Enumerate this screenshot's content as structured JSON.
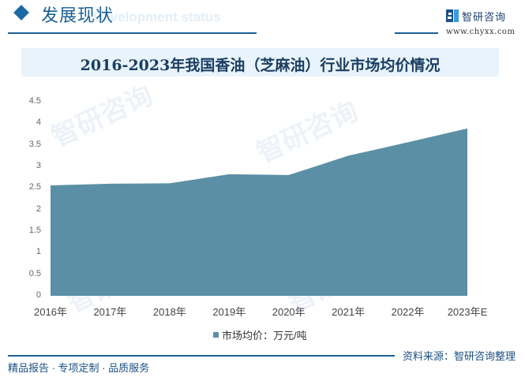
{
  "header": {
    "section_title": "发展现状",
    "section_subtitle": "Development status",
    "brand_name": "智研咨询",
    "brand_url": "www.chyxx.com"
  },
  "chart_title": "2016-2023年我国香油（芝麻油）行业市场均价情况",
  "legend_label": "市场均价：万元/吨",
  "footer": {
    "tagline": "精品报告 · 专项定制 · 品质服务",
    "source": "资料来源：智研咨询整理"
  },
  "colors": {
    "area_fill": "#5b8fa5",
    "title_band": "#e8f3fb",
    "brand_blue": "#1a5f95"
  },
  "y_ticks": [
    "0",
    "0.5",
    "1",
    "1.5",
    "2",
    "2.5",
    "3",
    "3.5",
    "4",
    "4.5"
  ],
  "x_ticks": [
    "2016年",
    "2017年",
    "2018年",
    "2019年",
    "2020年",
    "2021年",
    "2022年",
    "2023年E"
  ],
  "chart_data": {
    "type": "area",
    "title": "2016-2023年我国香油（芝麻油）行业市场均价情况",
    "categories": [
      "2016年",
      "2017年",
      "2018年",
      "2019年",
      "2020年",
      "2021年",
      "2022年",
      "2023年E"
    ],
    "series": [
      {
        "name": "市场均价：万元/吨",
        "values": [
          2.56,
          2.6,
          2.61,
          2.82,
          2.8,
          3.25,
          3.56,
          3.88
        ],
        "color": "#5b8fa5"
      }
    ],
    "xlabel": "",
    "ylabel": "",
    "ylim": [
      0,
      4.5
    ],
    "yticks": [
      0,
      0.5,
      1,
      1.5,
      2,
      2.5,
      3,
      3.5,
      4,
      4.5
    ],
    "grid": false,
    "legend_position": "bottom"
  }
}
